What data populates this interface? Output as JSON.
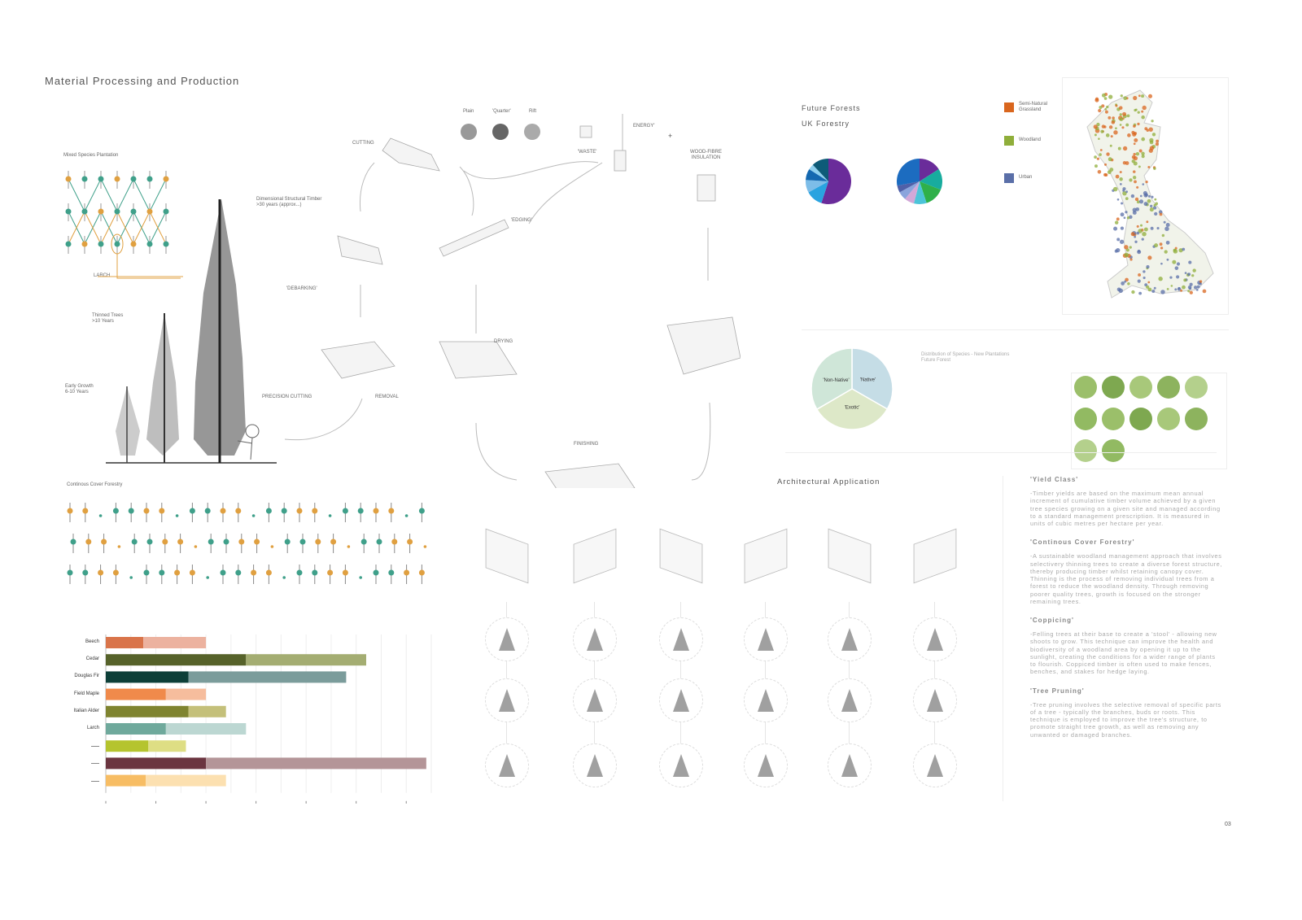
{
  "page": {
    "title": "Material Processing and Production",
    "page_number": "03"
  },
  "plantation": {
    "mixed_label": "Mixed Species Plantation",
    "larch_label": "LARCH",
    "dimensional_label": "Dimensional Structural Timber\n>30 years (approx...)",
    "thinned_label": "Thinned Trees\n>10 Years",
    "early_label": "Early Growth\n6-10 Years",
    "ccf_label": "Continous Cover Forestry",
    "colors": {
      "teal": "#3fa08a",
      "orange": "#e0a040"
    }
  },
  "process": {
    "cutting": "CUTTING",
    "debarking": "'DEBARKING'",
    "precision_cutting": "PRECISION CUTTING",
    "removal": "REMOVAL",
    "edging": "'EDGING'",
    "drying": "DRYING",
    "finishing": "FINISHING",
    "waste": "'WASTE'",
    "energy": "ENERGY'",
    "plus": "+",
    "insulation": "WOOD-FIBRE\nINSULATION",
    "cuts": [
      "Plain",
      "'Quarter'",
      "Rift"
    ]
  },
  "forests": {
    "title": "Future Forests",
    "subtitle": "UK Forestry",
    "legend": [
      {
        "label": "Semi-Natural\nGrassland",
        "color": "#d9661e"
      },
      {
        "label": "Woodland",
        "color": "#8fae3a"
      },
      {
        "label": "Urban",
        "color": "#5a6fa8"
      }
    ],
    "distribution_label": "Distribution of Species - New Plantations\nFuture Forest"
  },
  "architecture": {
    "title": "Architectural Application"
  },
  "notes": [
    {
      "heading": "'Yield Class'",
      "body": "-Timber yields are based on the maximum mean annual increment of cumulative timber volume achieved by a given tree species growing on a given site and managed according to a standard management prescription. It is measured in units of cubic metres per hectare per year."
    },
    {
      "heading": "'Continous Cover Forestry'",
      "body": "-A sustainable woodland management approach that involves selectivery thinning trees to create a diverse forest structure, thereby producing timber whilst retaining canopy cover. Thinning is the process of removing individual trees from a forest to reduce the woodland density. Through removing poorer quality trees, growth is focused on the stronger remaining trees."
    },
    {
      "heading": "'Coppicing'",
      "body": "-Felling trees at their base to create a 'stool' - allowing new shoots to grow.  This technique can improve the health and biodiversity of a woodland area by opening it up to the sunlight, creating the conditions for a wider range of plants to flourish. Coppiced timber is often used to make fences, benches, and stakes for hedge laying."
    },
    {
      "heading": "'Tree Pruning'",
      "body": "-Tree pruning involves the selective removal of specific parts of a tree - typically the branches, buds or roots. This technique is employed to improve the tree's structure, to promote straight tree growth, as well as removing any unwanted or damaged branches."
    }
  ],
  "chart_data": [
    {
      "type": "bar",
      "orientation": "horizontal",
      "stacked": true,
      "categories": [
        "Beech",
        "Cedar",
        "Douglas Fir",
        "Field Maple",
        "Italian Alder",
        "Larch",
        "",
        "",
        ""
      ],
      "series": [
        {
          "values": [
            1.5,
            5.6,
            3.3,
            2.4,
            3.3,
            2.4,
            1.7,
            4.0,
            1.6
          ],
          "colors": [
            "#d9744a",
            "#56622a",
            "#0d3f38",
            "#f08a4b",
            "#7f8430",
            "#6fa99c",
            "#b5c42e",
            "#6b3540",
            "#f7bd64"
          ]
        },
        {
          "values": [
            2.5,
            4.8,
            6.3,
            1.6,
            1.5,
            3.2,
            1.5,
            8.8,
            3.2
          ],
          "colors": [
            "#ecb29f",
            "#a4ad72",
            "#7b9c9b",
            "#f6bd9d",
            "#c4c07a",
            "#bcd7d2",
            "#dede84",
            "#b49598",
            "#fce0b0"
          ]
        }
      ],
      "xlim": [
        0,
        13
      ],
      "grid": true
    },
    {
      "type": "pie",
      "values": [
        55,
        12,
        9,
        8,
        4,
        12
      ],
      "colors": [
        "#6a2c9a",
        "#29a3e0",
        "#7dbde8",
        "#1468b0",
        "#8fd0ef",
        "#0e5b78"
      ]
    },
    {
      "type": "pie",
      "values": [
        16,
        15,
        14,
        9,
        7,
        6,
        5,
        28
      ],
      "colors": [
        "#6a2c9a",
        "#18ac9e",
        "#2fb04a",
        "#4cc4d8",
        "#d2a8d8",
        "#8aa4dc",
        "#5060a8",
        "#1c6cc0"
      ]
    },
    {
      "type": "pie",
      "categories": [
        "'Native'",
        "'Exotic'",
        "'Non-Native'"
      ],
      "values": [
        33.3,
        33.3,
        33.4
      ],
      "colors": [
        "#c5dde6",
        "#dde8c8",
        "#cfe6d8"
      ]
    }
  ]
}
